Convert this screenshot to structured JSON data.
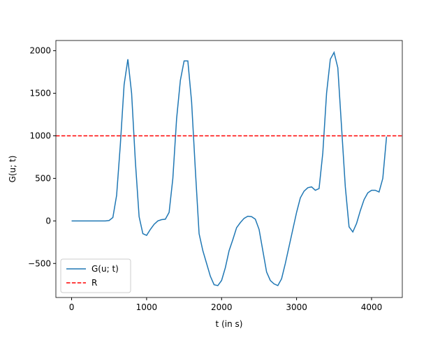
{
  "chart_data": {
    "type": "line",
    "xlabel": "t (in s)",
    "ylabel": "G(u; t)",
    "x": [
      0,
      50,
      100,
      150,
      200,
      250,
      300,
      350,
      400,
      450,
      500,
      550,
      600,
      650,
      700,
      750,
      800,
      850,
      900,
      950,
      1000,
      1050,
      1100,
      1150,
      1200,
      1250,
      1300,
      1350,
      1400,
      1450,
      1500,
      1550,
      1600,
      1650,
      1700,
      1750,
      1800,
      1850,
      1900,
      1950,
      2000,
      2050,
      2100,
      2150,
      2200,
      2250,
      2300,
      2350,
      2400,
      2450,
      2500,
      2550,
      2600,
      2650,
      2700,
      2750,
      2800,
      2850,
      2900,
      2950,
      3000,
      3050,
      3100,
      3150,
      3200,
      3250,
      3300,
      3350,
      3400,
      3450,
      3500,
      3550,
      3600,
      3650,
      3700,
      3750,
      3800,
      3850,
      3900,
      3950,
      4000,
      4050,
      4100,
      4150,
      4200
    ],
    "series": [
      {
        "name": "G(u; t)",
        "color": "#1f77b4",
        "values": [
          0,
          0,
          0,
          0,
          0,
          0,
          0,
          0,
          0,
          0,
          5,
          40,
          300,
          900,
          1600,
          1900,
          1500,
          700,
          50,
          -150,
          -170,
          -100,
          -40,
          0,
          15,
          20,
          100,
          500,
          1200,
          1650,
          1880,
          1880,
          1400,
          600,
          -150,
          -350,
          -500,
          -650,
          -750,
          -760,
          -700,
          -550,
          -350,
          -220,
          -80,
          -20,
          30,
          55,
          50,
          20,
          -100,
          -350,
          -600,
          -700,
          -740,
          -760,
          -680,
          -500,
          -300,
          -100,
          100,
          270,
          350,
          390,
          400,
          360,
          380,
          800,
          1500,
          1900,
          1980,
          1800,
          1100,
          400,
          -70,
          -130,
          -30,
          120,
          250,
          330,
          360,
          360,
          340,
          500,
          990
        ]
      }
    ],
    "hlines": [
      {
        "name": "R",
        "value": 1000,
        "color": "#ff0000",
        "dashed": true
      }
    ],
    "xlim": [
      -210,
      4410
    ],
    "ylim": [
      -900,
      2120
    ],
    "xticks": [
      0,
      1000,
      2000,
      3000,
      4000
    ],
    "yticks": [
      {
        "value": -500,
        "label": "−500"
      },
      0,
      500,
      1000,
      1500,
      2000
    ],
    "legend": "lower left"
  }
}
